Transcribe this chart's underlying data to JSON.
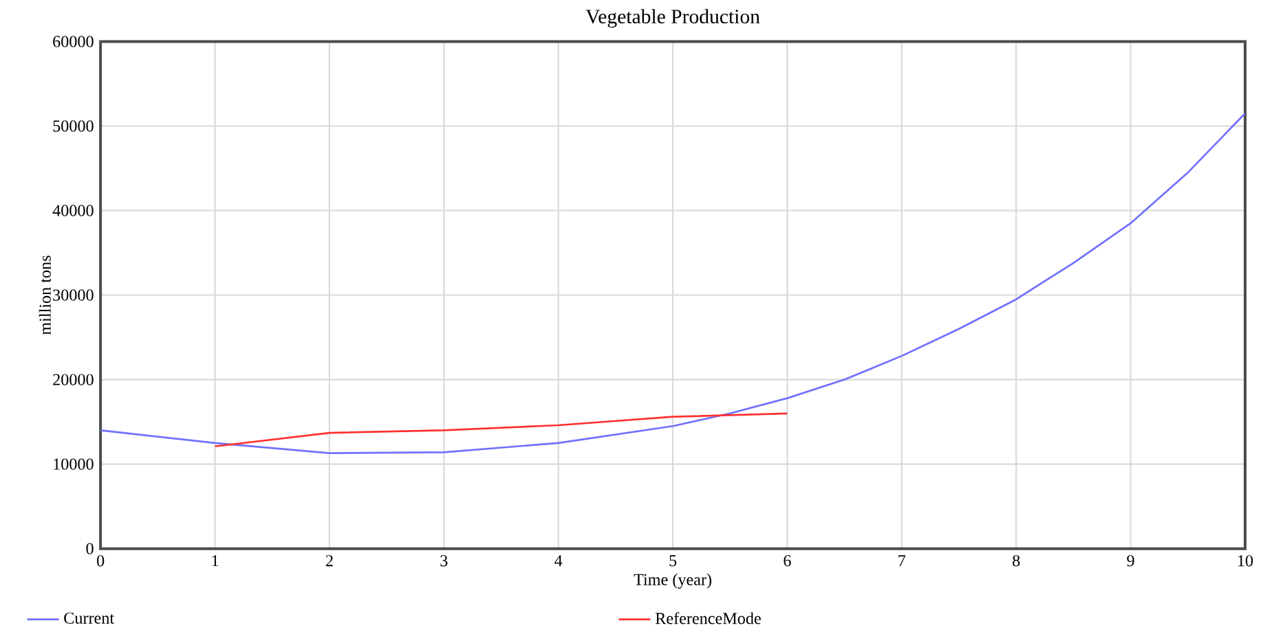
{
  "chart_data": {
    "type": "line",
    "title": "Vegetable Production",
    "xlabel": "Time (year)",
    "ylabel": "million tons",
    "xlim": [
      0,
      10
    ],
    "xticks": [
      0,
      1,
      2,
      3,
      4,
      5,
      6,
      7,
      8,
      9,
      10
    ],
    "ylim": [
      0,
      60000
    ],
    "yticks": [
      0,
      10000,
      20000,
      30000,
      40000,
      50000,
      60000
    ],
    "grid": true,
    "legend": "bottom",
    "line_style": "solid",
    "marker": "none",
    "series": [
      {
        "name": "Current",
        "color": "#7070ff",
        "x": [
          0,
          1,
          2,
          3,
          4,
          5,
          5.5,
          6,
          6.5,
          7,
          7.5,
          8,
          8.5,
          9,
          9.5,
          10
        ],
        "values": [
          14000,
          12500,
          11300,
          11400,
          12500,
          14500,
          16000,
          17800,
          20000,
          22800,
          26000,
          29500,
          33800,
          38500,
          44500,
          51500
        ]
      },
      {
        "name": "ReferenceMode",
        "color": "#ff3030",
        "x": [
          1,
          2,
          3,
          4,
          5,
          6
        ],
        "values": [
          12100,
          13700,
          14000,
          14600,
          15600,
          16000
        ]
      }
    ]
  }
}
